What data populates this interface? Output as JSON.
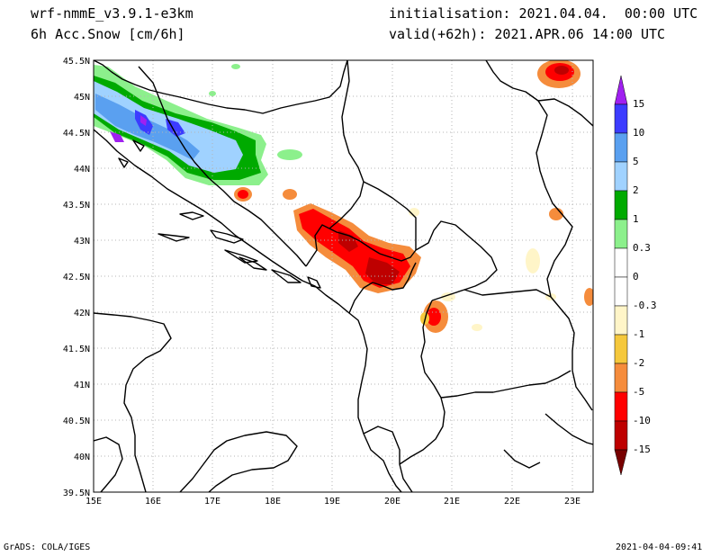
{
  "header": {
    "model": "wrf-nmmE_v3.9.1-e3km",
    "field": "6h Acc.Snow [cm/6h]",
    "initialisation": "initialisation: 2021.04.04.  00:00 UTC",
    "valid": "valid(+62h): 2021.APR.06 14:00 UTC"
  },
  "axes": {
    "lat_labels": [
      "45.5N",
      "45N",
      "44.5N",
      "44N",
      "43.5N",
      "43N",
      "42.5N",
      "42N",
      "41.5N",
      "41N",
      "40.5N",
      "40N",
      "39.5N"
    ],
    "lon_labels": [
      "15E",
      "16E",
      "17E",
      "18E",
      "19E",
      "20E",
      "21E",
      "22E",
      "23E"
    ],
    "lat_values": [
      45.5,
      45,
      44.5,
      44,
      43.5,
      43,
      42.5,
      42,
      41.5,
      41,
      40.5,
      40,
      39.5
    ],
    "lon_values": [
      15,
      16,
      17,
      18,
      19,
      20,
      21,
      22,
      23
    ]
  },
  "colorbar": {
    "labels": [
      "15",
      "10",
      "5",
      "2",
      "1",
      "0.3",
      "0",
      "-0.3",
      "-1",
      "-2",
      "-5",
      "-10",
      "-15"
    ],
    "colors": [
      "#a020f0",
      "#3c3cff",
      "#5aa0f0",
      "#a0d2ff",
      "#00aa00",
      "#8cf08c",
      "#ffffff",
      "#ffffff",
      "#fff5c8",
      "#f5c83c",
      "#f58c3c",
      "#ff0000",
      "#be0000",
      "#780000"
    ]
  },
  "footer": {
    "left": "GrADS: COLA/IGES",
    "right": "2021-04-04-09:41"
  }
}
